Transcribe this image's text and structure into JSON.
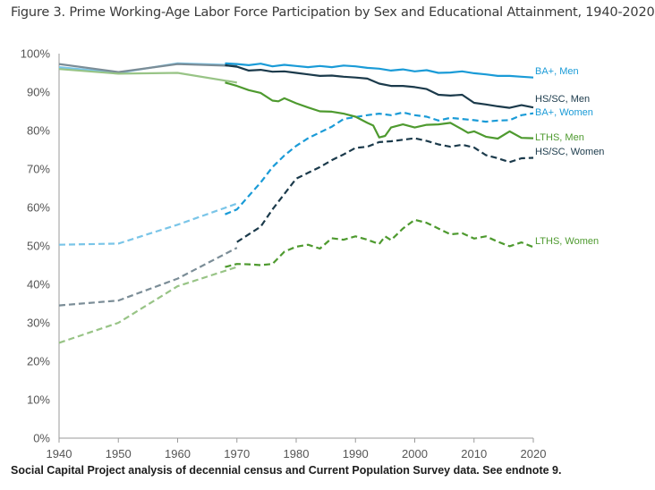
{
  "title": "Figure 3. Prime Working-Age Labor Force Participation by Sex and Educational Attainment, 1940-2020",
  "source": "Social Capital Project analysis of decennial census and Current Population Survey data. See endnote 9.",
  "chart_data": {
    "type": "line",
    "title": "Figure 3. Prime Working-Age Labor Force Participation by Sex and Educational Attainment, 1940-2020",
    "xlabel": "",
    "ylabel": "",
    "xlim": [
      1940,
      2020
    ],
    "ylim": [
      0,
      100
    ],
    "x_ticks": [
      "1940",
      "1950",
      "1960",
      "1970",
      "1980",
      "1990",
      "2000",
      "2010",
      "2020"
    ],
    "y_ticks": [
      "0%",
      "10%",
      "20%",
      "30%",
      "40%",
      "50%",
      "60%",
      "70%",
      "80%",
      "90%",
      "100%"
    ],
    "grid": false,
    "series": [
      {
        "name": "BA+, Men",
        "color": "#1a9bd7",
        "dash": false,
        "decennial": [
          [
            1940,
            96.5
          ],
          [
            1950,
            95.0
          ],
          [
            1960,
            97.5
          ],
          [
            1970,
            97.0
          ]
        ],
        "annual": [
          [
            1968,
            97.5
          ],
          [
            1970,
            97.3
          ],
          [
            1972,
            97.0
          ],
          [
            1974,
            97.4
          ],
          [
            1976,
            96.7
          ],
          [
            1978,
            97.1
          ],
          [
            1980,
            96.8
          ],
          [
            1982,
            96.5
          ],
          [
            1984,
            96.8
          ],
          [
            1986,
            96.5
          ],
          [
            1988,
            96.9
          ],
          [
            1990,
            96.7
          ],
          [
            1992,
            96.3
          ],
          [
            1994,
            96.1
          ],
          [
            1996,
            95.6
          ],
          [
            1998,
            95.9
          ],
          [
            2000,
            95.4
          ],
          [
            2002,
            95.7
          ],
          [
            2004,
            95.0
          ],
          [
            2006,
            95.1
          ],
          [
            2008,
            95.4
          ],
          [
            2010,
            94.9
          ],
          [
            2012,
            94.6
          ],
          [
            2014,
            94.2
          ],
          [
            2016,
            94.2
          ],
          [
            2018,
            94.0
          ],
          [
            2020,
            93.8
          ]
        ]
      },
      {
        "name": "HS/SC, Men",
        "color": "#1b3a4b",
        "dash": false,
        "decennial": [
          [
            1940,
            97.3
          ],
          [
            1950,
            95.2
          ],
          [
            1960,
            97.3
          ],
          [
            1970,
            96.8
          ]
        ],
        "annual": [
          [
            1968,
            97.0
          ],
          [
            1970,
            96.6
          ],
          [
            1972,
            95.6
          ],
          [
            1974,
            95.8
          ],
          [
            1976,
            95.3
          ],
          [
            1978,
            95.4
          ],
          [
            1980,
            95.0
          ],
          [
            1982,
            94.6
          ],
          [
            1984,
            94.2
          ],
          [
            1986,
            94.3
          ],
          [
            1988,
            94.0
          ],
          [
            1990,
            93.8
          ],
          [
            1992,
            93.5
          ],
          [
            1994,
            92.2
          ],
          [
            1996,
            91.6
          ],
          [
            1998,
            91.6
          ],
          [
            2000,
            91.3
          ],
          [
            2002,
            90.8
          ],
          [
            2004,
            89.3
          ],
          [
            2006,
            89.1
          ],
          [
            2008,
            89.3
          ],
          [
            2010,
            87.2
          ],
          [
            2012,
            86.8
          ],
          [
            2014,
            86.3
          ],
          [
            2016,
            85.9
          ],
          [
            2018,
            86.6
          ],
          [
            2020,
            86.0
          ]
        ]
      },
      {
        "name": "BA+, Women",
        "color": "#1a9bd7",
        "dash": true,
        "decennial": [
          [
            1940,
            50.3
          ],
          [
            1950,
            50.6
          ],
          [
            1960,
            55.5
          ],
          [
            1970,
            61.0
          ]
        ],
        "annual": [
          [
            1968,
            58.2
          ],
          [
            1970,
            59.5
          ],
          [
            1972,
            63.0
          ],
          [
            1974,
            66.5
          ],
          [
            1976,
            70.5
          ],
          [
            1978,
            73.5
          ],
          [
            1980,
            76.0
          ],
          [
            1982,
            78.0
          ],
          [
            1984,
            79.5
          ],
          [
            1986,
            81.0
          ],
          [
            1988,
            83.0
          ],
          [
            1990,
            83.5
          ],
          [
            1992,
            84.0
          ],
          [
            1994,
            84.4
          ],
          [
            1996,
            84.0
          ],
          [
            1998,
            84.7
          ],
          [
            2000,
            84.0
          ],
          [
            2002,
            83.6
          ],
          [
            2004,
            82.6
          ],
          [
            2006,
            83.3
          ],
          [
            2008,
            83.0
          ],
          [
            2010,
            82.7
          ],
          [
            2012,
            82.3
          ],
          [
            2014,
            82.6
          ],
          [
            2016,
            82.7
          ],
          [
            2018,
            84.0
          ],
          [
            2020,
            84.5
          ]
        ]
      },
      {
        "name": "LTHS, Men",
        "color": "#4e9a2f",
        "dash": false,
        "decennial": [
          [
            1940,
            96.0
          ],
          [
            1950,
            94.8
          ],
          [
            1960,
            95.0
          ],
          [
            1970,
            92.5
          ]
        ],
        "annual": [
          [
            1968,
            92.5
          ],
          [
            1970,
            91.6
          ],
          [
            1972,
            90.5
          ],
          [
            1974,
            89.8
          ],
          [
            1976,
            87.8
          ],
          [
            1977,
            87.6
          ],
          [
            1978,
            88.4
          ],
          [
            1980,
            87.1
          ],
          [
            1982,
            86.0
          ],
          [
            1984,
            85.0
          ],
          [
            1986,
            84.9
          ],
          [
            1988,
            84.4
          ],
          [
            1990,
            83.6
          ],
          [
            1992,
            82.0
          ],
          [
            1993,
            81.3
          ],
          [
            1994,
            78.2
          ],
          [
            1995,
            78.6
          ],
          [
            1996,
            80.8
          ],
          [
            1998,
            81.6
          ],
          [
            2000,
            80.8
          ],
          [
            2002,
            81.5
          ],
          [
            2004,
            81.6
          ],
          [
            2006,
            82.0
          ],
          [
            2008,
            80.3
          ],
          [
            2009,
            79.4
          ],
          [
            2010,
            79.8
          ],
          [
            2012,
            78.4
          ],
          [
            2014,
            77.9
          ],
          [
            2016,
            79.8
          ],
          [
            2018,
            78.1
          ],
          [
            2020,
            78.0
          ]
        ]
      },
      {
        "name": "HS/SC, Women",
        "color": "#1b3a4b",
        "dash": true,
        "decennial": [
          [
            1940,
            34.5
          ],
          [
            1950,
            35.8
          ],
          [
            1960,
            41.5
          ],
          [
            1970,
            49.5
          ]
        ],
        "annual": [
          [
            1970,
            51.0
          ],
          [
            1972,
            53.0
          ],
          [
            1974,
            55.0
          ],
          [
            1976,
            59.5
          ],
          [
            1978,
            63.5
          ],
          [
            1980,
            67.5
          ],
          [
            1982,
            69.0
          ],
          [
            1984,
            70.5
          ],
          [
            1986,
            72.3
          ],
          [
            1988,
            73.8
          ],
          [
            1990,
            75.5
          ],
          [
            1992,
            75.8
          ],
          [
            1994,
            77.0
          ],
          [
            1996,
            77.2
          ],
          [
            1998,
            77.6
          ],
          [
            2000,
            78.0
          ],
          [
            2002,
            77.3
          ],
          [
            2004,
            76.4
          ],
          [
            2006,
            75.8
          ],
          [
            2008,
            76.3
          ],
          [
            2010,
            75.6
          ],
          [
            2012,
            73.6
          ],
          [
            2014,
            72.8
          ],
          [
            2016,
            71.8
          ],
          [
            2018,
            72.8
          ],
          [
            2020,
            72.9
          ]
        ]
      },
      {
        "name": "LTHS, Women",
        "color": "#4e9a2f",
        "dash": true,
        "decennial": [
          [
            1940,
            24.8
          ],
          [
            1950,
            30.0
          ],
          [
            1960,
            39.5
          ],
          [
            1970,
            44.5
          ]
        ],
        "annual": [
          [
            1968,
            44.5
          ],
          [
            1970,
            45.3
          ],
          [
            1972,
            45.2
          ],
          [
            1974,
            45.0
          ],
          [
            1976,
            45.3
          ],
          [
            1978,
            48.5
          ],
          [
            1980,
            49.8
          ],
          [
            1982,
            50.3
          ],
          [
            1984,
            49.3
          ],
          [
            1986,
            52.0
          ],
          [
            1988,
            51.6
          ],
          [
            1990,
            52.5
          ],
          [
            1992,
            51.6
          ],
          [
            1994,
            50.5
          ],
          [
            1995,
            52.5
          ],
          [
            1996,
            51.5
          ],
          [
            1998,
            54.5
          ],
          [
            2000,
            56.8
          ],
          [
            2002,
            56.0
          ],
          [
            2004,
            54.5
          ],
          [
            2006,
            53.0
          ],
          [
            2008,
            53.3
          ],
          [
            2010,
            51.9
          ],
          [
            2012,
            52.5
          ],
          [
            2014,
            51.1
          ],
          [
            2016,
            49.9
          ],
          [
            2018,
            50.9
          ],
          [
            2020,
            49.7
          ]
        ]
      }
    ]
  }
}
